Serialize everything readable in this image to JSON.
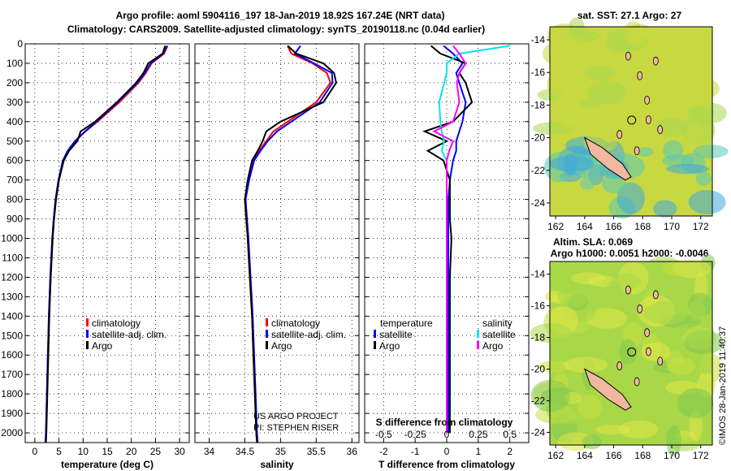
{
  "header": {
    "line1": "Argo profile: aoml 5904116_197 18-Jan-2019 18.92S 167.24E (NRT data)",
    "line2": "Climatology: CARS2009. Satellite-adjusted climatology: synTS_20190118.nc (0.04d earlier)"
  },
  "colors": {
    "climatology": "#ff0000",
    "satellite": "#0000ff",
    "argo": "#000000",
    "sat_salinity": "#00e5ee",
    "argo_salinity": "#ff00ff"
  },
  "depth_ticks": [
    "0",
    "100",
    "200",
    "300",
    "400",
    "500",
    "600",
    "700",
    "800",
    "900",
    "1000",
    "1100",
    "1200",
    "1300",
    "1400",
    "1500",
    "1600",
    "1700",
    "1800",
    "1900",
    "2000"
  ],
  "panel_temp": {
    "xlabel": "temperature (deg C)",
    "xticks": [
      "0",
      "5",
      "10",
      "15",
      "20",
      "25",
      "30"
    ],
    "legend": [
      "climatology",
      "satellite-adj. clim.",
      "Argo"
    ]
  },
  "panel_sal": {
    "xlabel": "salinity",
    "xticks": [
      "34",
      "34.5",
      "35",
      "35.5",
      "36"
    ],
    "legend": [
      "climatology",
      "satellite-adj. clim.",
      "Argo"
    ],
    "credit1": "US ARGO PROJECT",
    "credit2": "PI: STEPHEN RISER"
  },
  "panel_diff": {
    "xlabel": "T difference from climatology",
    "xticks": [
      "-2",
      "-1",
      "0",
      "1",
      "2"
    ],
    "top_label": "S difference from climatology",
    "top_ticks": [
      "-0.5",
      "-0.25",
      "0",
      "0.25",
      "0.5"
    ],
    "legend_t_title": "temperature",
    "legend_s_title": "salinity",
    "legend_t": [
      "satellite",
      "Argo"
    ],
    "legend_s": [
      "satellite",
      "Argo"
    ]
  },
  "map_sst": {
    "title": "sat. SST: 27.1 Argo: 27",
    "yticks": [
      "-14",
      "-16",
      "-18",
      "-20",
      "-22",
      "-24"
    ],
    "xticks": [
      "162",
      "164",
      "166",
      "168",
      "170",
      "172"
    ]
  },
  "map_sla": {
    "title1": "Altim. SLA: 0.069",
    "title2": "Argo h1000: 0.0051 h2000: -0.0046",
    "yticks": [
      "-14",
      "-16",
      "-18",
      "-20",
      "-22",
      "-24"
    ],
    "xticks": [
      "162",
      "164",
      "166",
      "168",
      "170",
      "172"
    ]
  },
  "stamp": "©IMOS 28-Jan-2019 11:40:37",
  "chart_data": [
    {
      "type": "line",
      "xlabel": "temperature (deg C)",
      "xlim": [
        -2,
        32
      ],
      "ylim": [
        2050,
        0
      ],
      "y": [
        10,
        50,
        100,
        150,
        200,
        300,
        400,
        450,
        500,
        550,
        600,
        700,
        800,
        900,
        1000,
        1200,
        1400,
        1600,
        1800,
        2000,
        2050
      ],
      "series": [
        {
          "name": "climatology",
          "x": [
            27.5,
            26.8,
            24.2,
            23.0,
            21.5,
            17.5,
            13.0,
            10.5,
            8.4,
            6.9,
            5.9,
            4.9,
            4.3,
            3.9,
            3.6,
            3.2,
            2.9,
            2.7,
            2.5,
            2.3,
            2.2
          ]
        },
        {
          "name": "satellite-adj. clim.",
          "x": [
            27.4,
            26.6,
            24.0,
            22.8,
            21.3,
            17.2,
            12.8,
            10.4,
            8.3,
            6.8,
            5.8,
            4.9,
            4.3,
            3.9,
            3.6,
            3.2,
            2.9,
            2.7,
            2.5,
            2.3,
            2.2
          ]
        },
        {
          "name": "Argo",
          "x": [
            27.0,
            26.5,
            23.5,
            22.5,
            21.0,
            17.0,
            12.5,
            9.5,
            8.8,
            7.1,
            6.0,
            5.0,
            4.4,
            4.0,
            3.7,
            3.3,
            3.0,
            2.8,
            2.6,
            2.4,
            2.3
          ]
        }
      ]
    },
    {
      "type": "line",
      "xlabel": "salinity",
      "xlim": [
        33.8,
        36.1
      ],
      "ylim": [
        2050,
        0
      ],
      "y": [
        10,
        50,
        100,
        150,
        200,
        300,
        400,
        450,
        500,
        550,
        600,
        700,
        800,
        900,
        1000,
        1200,
        1400,
        1600,
        1800,
        2000,
        2050
      ],
      "series": [
        {
          "name": "climatology",
          "x": [
            35.1,
            35.15,
            35.45,
            35.65,
            35.7,
            35.5,
            35.1,
            34.9,
            34.8,
            34.7,
            34.62,
            34.55,
            34.5,
            34.52,
            34.54,
            34.57,
            34.6,
            34.62,
            34.64,
            34.66,
            34.67
          ]
        },
        {
          "name": "satellite-adj. clim.",
          "x": [
            35.28,
            35.2,
            35.47,
            35.72,
            35.73,
            35.55,
            35.15,
            34.95,
            34.82,
            34.72,
            34.63,
            34.56,
            34.51,
            34.53,
            34.55,
            34.58,
            34.61,
            34.63,
            34.65,
            34.67,
            34.68
          ]
        },
        {
          "name": "Argo",
          "x": [
            35.1,
            35.22,
            35.6,
            35.75,
            35.78,
            35.6,
            35.0,
            34.8,
            34.75,
            34.68,
            34.6,
            34.54,
            34.5,
            34.52,
            34.54,
            34.57,
            34.6,
            34.62,
            34.64,
            34.66,
            34.67
          ]
        }
      ]
    },
    {
      "type": "line",
      "xlabel": "T difference from climatology",
      "x2label": "S difference from climatology",
      "xlim": [
        -2.6,
        2.6
      ],
      "x2lim": [
        -0.65,
        0.65
      ],
      "ylim": [
        2050,
        0
      ],
      "y": [
        10,
        50,
        100,
        150,
        200,
        300,
        400,
        450,
        500,
        550,
        600,
        700,
        800,
        900,
        1000,
        1200,
        1400,
        1600,
        1800,
        2000
      ],
      "series": [
        {
          "name": "temperature satellite",
          "axis": "T",
          "x": [
            -0.1,
            0.2,
            0.5,
            0.3,
            0.4,
            0.6,
            0.5,
            0.4,
            0.3,
            0.3,
            0.2,
            0.1,
            0.05,
            0.05,
            0.05,
            0.05,
            0.05,
            0.05,
            0.05,
            0.05
          ]
        },
        {
          "name": "temperature Argo",
          "axis": "T",
          "x": [
            -0.5,
            -0.2,
            0.6,
            0.4,
            0.6,
            0.8,
            0.2,
            -0.7,
            0.0,
            -0.6,
            -0.1,
            0.1,
            0.1,
            0.1,
            0.15,
            0.1,
            0.1,
            0.1,
            0.1,
            0.1
          ]
        },
        {
          "name": "salinity satellite",
          "axis": "S",
          "x": [
            0.5,
            0.1,
            0.0,
            0.0,
            -0.02,
            -0.06,
            -0.05,
            -0.04,
            -0.02,
            -0.04,
            0.0,
            0.0,
            0.0,
            0.0,
            0.0,
            0.0,
            0.0,
            0.0,
            0.0,
            0.0
          ]
        },
        {
          "name": "salinity Argo",
          "axis": "S",
          "x": [
            0.05,
            0.1,
            0.15,
            0.1,
            0.08,
            0.1,
            0.05,
            -0.1,
            0.05,
            0.02,
            0.0,
            0.0,
            0.0,
            0.0,
            0.0,
            0.0,
            0.0,
            0.0,
            0.0,
            0.0
          ]
        }
      ]
    }
  ]
}
